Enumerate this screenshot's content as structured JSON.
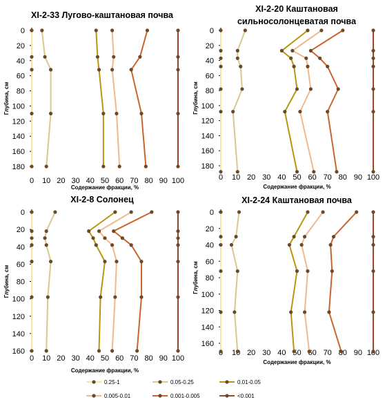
{
  "colors": {
    "f_025_1": "#FBE5A0",
    "f_005_025": "#D8C88E",
    "f_001_005": "#B8960C",
    "f_0005_001": "#F2B88A",
    "f_0001_0005": "#C9642A",
    "f_lt_0001": "#9A4A20",
    "marker": "#6B4A2A",
    "axis": "#000000"
  },
  "legend": [
    {
      "label": "0.25-1",
      "color_key": "f_025_1"
    },
    {
      "label": "0.05-0.25",
      "color_key": "f_005_025"
    },
    {
      "label": "0.01-0.05",
      "color_key": "f_001_005"
    },
    {
      "label": "0.005-0.01",
      "color_key": "f_0005_001"
    },
    {
      "label": "0.001-0.005",
      "color_key": "f_0001_0005"
    },
    {
      "label": "<0.001",
      "color_key": "f_lt_0001"
    }
  ],
  "chart_data": [
    {
      "type": "line",
      "title": [
        "XI-2-33 Лугово-каштановая почва"
      ],
      "xlabel": "Содержание фракции, %",
      "ylabel": "Глубина, см",
      "xlim": [
        0,
        100
      ],
      "xticks": [
        0,
        10,
        20,
        30,
        40,
        50,
        60,
        70,
        80,
        90,
        100
      ],
      "ylim": [
        0,
        180
      ],
      "yticks": [
        0,
        20,
        40,
        60,
        80,
        100,
        120,
        140,
        160,
        180
      ],
      "y_inverted": true,
      "depths": [
        0,
        35,
        52,
        110,
        180
      ],
      "series": [
        {
          "name": "0.25-1",
          "color_key": "f_025_1",
          "values": [
            0,
            0,
            0,
            0,
            0
          ]
        },
        {
          "name": "0.05-0.25",
          "color_key": "f_005_025",
          "values": [
            7,
            9,
            13,
            13,
            10
          ]
        },
        {
          "name": "0.01-0.05",
          "color_key": "f_001_005",
          "values": [
            44,
            45,
            46,
            49,
            49
          ]
        },
        {
          "name": "0.005-0.01",
          "color_key": "f_0005_001",
          "values": [
            55,
            56,
            55,
            58,
            60
          ]
        },
        {
          "name": "0.001-0.005",
          "color_key": "f_0001_0005",
          "values": [
            79,
            74,
            68,
            75,
            78
          ]
        },
        {
          "name": "<0.001",
          "color_key": "f_lt_0001",
          "values": [
            100,
            100,
            100,
            100,
            100
          ]
        }
      ]
    },
    {
      "type": "line",
      "title": [
        "XI-2-20 Каштановая",
        "сильносолонцеватая почва"
      ],
      "xlabel": "Содержание фракции, %",
      "ylabel": "Глубина, см",
      "xlim": [
        0,
        100
      ],
      "xticks": [
        0,
        10,
        20,
        30,
        40,
        50,
        60,
        70,
        80,
        90,
        100
      ],
      "ylim": [
        0,
        180
      ],
      "yticks": [
        0,
        20,
        40,
        60,
        80,
        100,
        120,
        140,
        160,
        180
      ],
      "y_inverted": true,
      "depths": [
        0,
        27,
        37,
        48,
        78,
        108,
        188
      ],
      "series": [
        {
          "name": "0.25-1",
          "color_key": "f_025_1",
          "values": [
            0,
            0,
            0,
            0,
            0,
            0,
            0
          ]
        },
        {
          "name": "0.05-0.25",
          "color_key": "f_005_025",
          "values": [
            16,
            11,
            11,
            13,
            14,
            8,
            11
          ]
        },
        {
          "name": "0.01-0.05",
          "color_key": "f_001_005",
          "values": [
            57,
            40,
            46,
            48,
            50,
            42,
            50
          ]
        },
        {
          "name": "0.005-0.01",
          "color_key": "f_0005_001",
          "values": [
            66,
            47,
            56,
            57,
            59,
            52,
            61
          ]
        },
        {
          "name": "0.001-0.005",
          "color_key": "f_0001_0005",
          "values": [
            80,
            59,
            65,
            70,
            77,
            70,
            76
          ]
        },
        {
          "name": "<0.001",
          "color_key": "f_lt_0001",
          "values": [
            100,
            100,
            100,
            100,
            100,
            100,
            100
          ]
        }
      ]
    },
    {
      "type": "line",
      "title": [
        "XI-2-8 Солонец"
      ],
      "xlabel": "Содержание фракции, %",
      "ylabel": "Глубина, см",
      "xlim": [
        0,
        100
      ],
      "xticks": [
        0,
        10,
        20,
        30,
        40,
        50,
        60,
        70,
        80,
        90,
        100
      ],
      "ylim": [
        0,
        160
      ],
      "yticks": [
        0,
        20,
        40,
        60,
        80,
        100,
        120,
        140,
        160
      ],
      "y_inverted": true,
      "depths": [
        0,
        22,
        30,
        38,
        57,
        98,
        160
      ],
      "series": [
        {
          "name": "0.25-1",
          "color_key": "f_025_1",
          "values": [
            0,
            0,
            0,
            0,
            0,
            0,
            0
          ]
        },
        {
          "name": "0.05-0.25",
          "color_key": "f_005_025",
          "values": [
            16,
            10,
            9,
            10,
            13,
            11,
            10
          ]
        },
        {
          "name": "0.01-0.05",
          "color_key": "f_001_005",
          "values": [
            57,
            39,
            42,
            44,
            50,
            47,
            46
          ]
        },
        {
          "name": "0.005-0.01",
          "color_key": "f_0005_001",
          "values": [
            68,
            46,
            50,
            55,
            58,
            57,
            55
          ]
        },
        {
          "name": "0.001-0.005",
          "color_key": "f_0001_0005",
          "values": [
            82,
            56,
            62,
            68,
            75,
            75,
            72
          ]
        },
        {
          "name": "<0.001",
          "color_key": "f_lt_0001",
          "values": [
            100,
            100,
            100,
            100,
            100,
            100,
            100
          ]
        }
      ]
    },
    {
      "type": "line",
      "title": [
        "XI-2-24 Каштановая почва"
      ],
      "xlabel": "Содержание фракции, %",
      "ylabel": "Глубина, см",
      "xlim": [
        0,
        100
      ],
      "xticks": [
        0,
        10,
        20,
        30,
        40,
        50,
        60,
        70,
        80,
        90,
        100
      ],
      "ylim": [
        0,
        160
      ],
      "yticks": [
        0,
        20,
        40,
        60,
        80,
        100,
        120,
        140,
        160
      ],
      "y_inverted": true,
      "depths": [
        0,
        30,
        40,
        72,
        122,
        170
      ],
      "series": [
        {
          "name": "0.25-1",
          "color_key": "f_025_1",
          "values": [
            0,
            0,
            0,
            0,
            0,
            0
          ]
        },
        {
          "name": "0.05-0.25",
          "color_key": "f_005_025",
          "values": [
            12,
            10,
            7,
            11,
            9,
            11
          ]
        },
        {
          "name": "0.01-0.05",
          "color_key": "f_001_005",
          "values": [
            57,
            48,
            45,
            50,
            46,
            48
          ]
        },
        {
          "name": "0.005-0.01",
          "color_key": "f_0005_001",
          "values": [
            67,
            55,
            53,
            57,
            55,
            58
          ]
        },
        {
          "name": "0.001-0.005",
          "color_key": "f_0001_0005",
          "values": [
            89,
            74,
            72,
            73,
            71,
            79
          ]
        },
        {
          "name": "<0.001",
          "color_key": "f_lt_0001",
          "values": [
            100,
            100,
            100,
            100,
            100,
            100
          ]
        }
      ]
    }
  ]
}
